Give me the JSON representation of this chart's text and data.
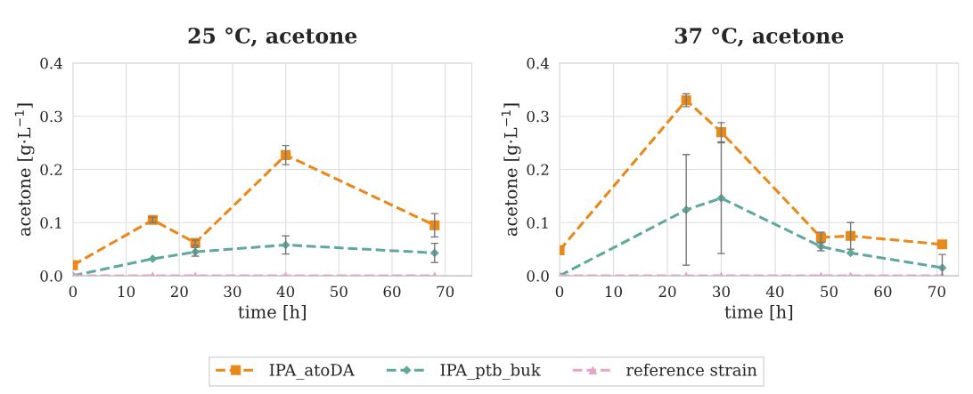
{
  "chart_data": [
    {
      "type": "line",
      "title": "25 °C, acetone",
      "xlabel": "time [h]",
      "ylabel": "acetone [g·L$^{−1}$]",
      "xlim": [
        0,
        75
      ],
      "xticks": [
        0,
        10,
        20,
        30,
        40,
        50,
        60,
        70
      ],
      "ylim": [
        0,
        0.4
      ],
      "yticks": [
        {
          "value": 0,
          "label": "0.0"
        },
        0.1,
        0.2,
        0.3,
        0.4
      ],
      "grid": true,
      "legend": "bottom",
      "line_style": "dashed",
      "x": [
        0,
        15,
        23,
        40,
        68
      ],
      "series": [
        {
          "name": "IPA_atoDA",
          "color": "#e8891a",
          "marker": "square",
          "values": [
            0.02,
            0.105,
            0.062,
            0.227,
            0.095
          ],
          "errors": [
            null,
            0.005,
            0.005,
            0.018,
            0.022
          ]
        },
        {
          "name": "IPA_ptb_buk",
          "color": "#5fa89c",
          "marker": "diamond",
          "values": [
            0,
            0.032,
            0.045,
            0.058,
            0.043
          ],
          "errors": [
            null,
            null,
            0.008,
            0.017,
            0.018
          ]
        },
        {
          "name": "reference strain",
          "color": "#e3a6c8",
          "marker": "triangle",
          "values": [
            0,
            0,
            0,
            0,
            0
          ]
        }
      ]
    },
    {
      "type": "line",
      "title": "37 °C, acetone",
      "xlabel": "time [h]",
      "ylabel": "acetone [g·L$^{−1}$]",
      "xlim": [
        0,
        74
      ],
      "xticks": [
        0,
        10,
        20,
        30,
        40,
        50,
        60,
        70
      ],
      "ylim": [
        0,
        0.4
      ],
      "yticks": [
        {
          "value": 0,
          "label": "0.0"
        },
        0.1,
        0.2,
        0.3,
        0.4
      ],
      "grid": true,
      "line_style": "dashed",
      "x": [
        0,
        23.5,
        30,
        48.5,
        54,
        71
      ],
      "series": [
        {
          "color": "#e8891a",
          "marker": "square",
          "values": [
            0.048,
            0.33,
            0.27,
            0.072,
            0.075,
            0.059
          ],
          "errors": [
            null,
            0.012,
            0.018,
            0.01,
            0.025,
            null
          ]
        },
        {
          "color": "#5fa89c",
          "marker": "diamond",
          "values": [
            0,
            0.124,
            0.146,
            0.055,
            0.043,
            0.015
          ],
          "errors": [
            null,
            0.104,
            0.104,
            0.008,
            null,
            0.025
          ]
        },
        {
          "color": "#e3a6c8",
          "marker": "triangle",
          "values": [
            0,
            0,
            0,
            0,
            0,
            0
          ]
        }
      ]
    }
  ]
}
